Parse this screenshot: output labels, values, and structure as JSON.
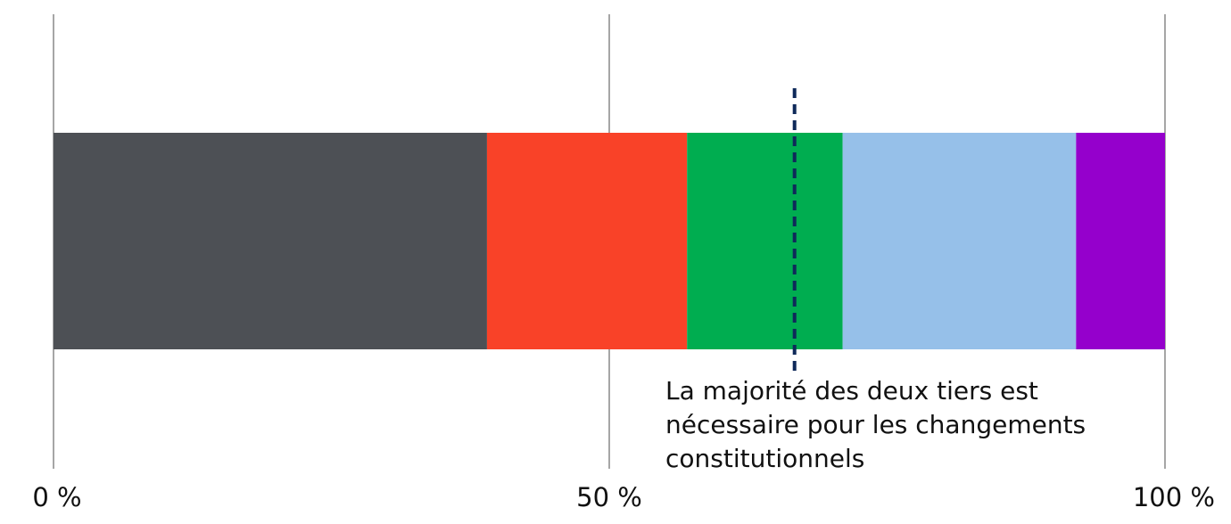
{
  "chart_data": {
    "type": "bar",
    "orientation": "horizontal-stacked",
    "title": "",
    "xlabel": "",
    "ylabel": "",
    "xlim": [
      0,
      100
    ],
    "x_ticks": [
      {
        "value": 0,
        "label": "0 %"
      },
      {
        "value": 50,
        "label": "50 %"
      },
      {
        "value": 100,
        "label": "100 %"
      }
    ],
    "grid": "vertical",
    "legend": "none",
    "segments": [
      {
        "value": 39.0,
        "color": "#4d5055"
      },
      {
        "value": 18.0,
        "color": "#f94228"
      },
      {
        "value": 14.0,
        "color": "#00ad50"
      },
      {
        "value": 21.0,
        "color": "#96c0e9"
      },
      {
        "value": 8.0,
        "color": "#9500cc"
      }
    ],
    "reference_line": {
      "value": 66.67,
      "style": "dashed",
      "color": "#0f2a5a",
      "annotation": [
        "La majorité des deux tiers est",
        "nécessaire pour les changements",
        "constitutionnels"
      ]
    }
  }
}
